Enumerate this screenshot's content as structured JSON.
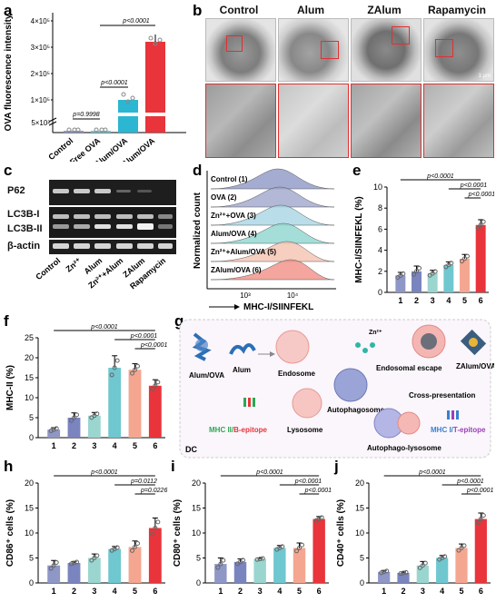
{
  "panel_labels": {
    "a": "a",
    "b": "b",
    "c": "c",
    "d": "d",
    "e": "e",
    "f": "f",
    "g": "g",
    "h": "h",
    "i": "i",
    "j": "j"
  },
  "panel_a": {
    "ylabel": "OVA fluorescence intensity",
    "yticks": [
      "5×10²",
      "1×10⁵",
      "2×10⁵",
      "3×10⁵",
      "4×10⁵"
    ],
    "xticks": [
      "Control",
      "Free OVA",
      "Alum/OVA",
      "ZAlum/OVA"
    ],
    "pvalues": [
      "p=0.9998",
      "p<0.0001",
      "p<0.0001"
    ]
  },
  "panel_b": {
    "titles": [
      "Control",
      "Alum",
      "ZAlum",
      "Rapamycin"
    ],
    "scale": "1 μm"
  },
  "panel_c": {
    "rows": [
      "P62",
      "LC3B-I",
      "LC3B-II",
      "β-actin"
    ],
    "lanes": [
      "Control",
      "Zn²⁺",
      "Alum",
      "Zn²⁺+Alum",
      "ZAlum",
      "Rapamycin"
    ]
  },
  "panel_d": {
    "ylabel": "Normalized count",
    "xlabel": "MHC-I/SIINFEKL",
    "ticks": [
      "10³",
      "10⁴"
    ],
    "rows": [
      "Control (1)",
      "OVA (2)",
      "Zn²⁺+OVA (3)",
      "Alum/OVA (4)",
      "Zn²⁺+Alum/OVA (5)",
      "ZAlum/OVA (6)"
    ],
    "colors": [
      "#8e97c6",
      "#9fa6cc",
      "#a9d6e3",
      "#8fd6cf",
      "#f4c3b2",
      "#f08f86"
    ]
  },
  "panel_g": {
    "labels": {
      "alum_ova": "Alum/OVA",
      "alum": "Alum",
      "endosome": "Endosome",
      "zn": "Zn²⁺",
      "endosomal_escape": "Endosomal escape",
      "zalum_ova": "ZAlum/OVA",
      "autophagosome": "Autophagosome",
      "lysosome": "Lysosome",
      "cross_presentation": "Cross-presentation",
      "autophago_lysosome": "Autophago-lysosome",
      "mhc2_prefix": "MHC II/",
      "mhc2_suffix": "B-epitope",
      "mhc1_prefix": "MHC I/",
      "mhc1_suffix": "T-epitope",
      "dc": "DC"
    }
  },
  "chart_data": [
    {
      "id": "e",
      "type": "bar",
      "categories": [
        "1",
        "2",
        "3",
        "4",
        "5",
        "6"
      ],
      "values": [
        1.6,
        2.0,
        1.8,
        2.6,
        3.2,
        6.4
      ],
      "errors": [
        0.3,
        0.5,
        0.3,
        0.3,
        0.4,
        0.5
      ],
      "ylabel": "MHC-I/SIINFEKL (%)",
      "ylim": [
        0,
        10
      ],
      "yticks": [
        0,
        2,
        4,
        6,
        8,
        10
      ],
      "pvalues": [
        "p<0.0001",
        "p<0.0001",
        "p<0.0001"
      ],
      "colors": [
        "#8e97c6",
        "#7a84bf",
        "#9ad6cf",
        "#6fc7cf",
        "#f4a690",
        "#e8343a"
      ]
    },
    {
      "id": "f",
      "type": "bar",
      "categories": [
        "1",
        "2",
        "3",
        "4",
        "5",
        "6"
      ],
      "values": [
        2.0,
        5.0,
        5.5,
        17.5,
        17.0,
        13.0
      ],
      "errors": [
        0.5,
        1.2,
        0.8,
        3.0,
        1.5,
        1.5
      ],
      "ylabel": "MHC-II (%)",
      "ylim": [
        0,
        25
      ],
      "yticks": [
        0,
        5,
        10,
        15,
        20,
        25
      ],
      "pvalues": [
        "p<0.0001",
        "p<0.0001",
        "p<0.0001"
      ],
      "colors": [
        "#8e97c6",
        "#7a84bf",
        "#9ad6cf",
        "#6fc7cf",
        "#f4a690",
        "#e8343a"
      ]
    },
    {
      "id": "h",
      "type": "bar",
      "categories": [
        "1",
        "2",
        "3",
        "4",
        "5",
        "6"
      ],
      "values": [
        3.5,
        4.0,
        5.0,
        6.8,
        7.2,
        11.0
      ],
      "errors": [
        1.0,
        0.3,
        0.8,
        0.5,
        1.2,
        2.0
      ],
      "ylabel": "CD86⁺ cells (%)",
      "ylim": [
        0,
        20
      ],
      "yticks": [
        0,
        5,
        10,
        15,
        20
      ],
      "pvalues": [
        "p<0.0001",
        "p=0.0112",
        "p=0.0226"
      ],
      "colors": [
        "#8e97c6",
        "#7a84bf",
        "#9ad6cf",
        "#6fc7cf",
        "#f4a690",
        "#e8343a"
      ]
    },
    {
      "id": "i",
      "type": "bar",
      "categories": [
        "1",
        "2",
        "3",
        "4",
        "5",
        "6"
      ],
      "values": [
        3.8,
        4.2,
        4.8,
        7.0,
        7.0,
        12.8
      ],
      "errors": [
        1.2,
        0.6,
        0.2,
        0.5,
        1.0,
        0.5
      ],
      "ylabel": "CD80⁺ cells (%)",
      "ylim": [
        0,
        20
      ],
      "yticks": [
        0,
        5,
        10,
        15,
        20
      ],
      "pvalues": [
        "p<0.0001",
        "p<0.0001",
        "p<0.0001"
      ],
      "colors": [
        "#8e97c6",
        "#7a84bf",
        "#9ad6cf",
        "#6fc7cf",
        "#f4a690",
        "#e8343a"
      ]
    },
    {
      "id": "j",
      "type": "bar",
      "categories": [
        "1",
        "2",
        "3",
        "4",
        "5",
        "6"
      ],
      "values": [
        2.2,
        2.0,
        3.5,
        5.0,
        7.0,
        12.8
      ],
      "errors": [
        0.3,
        0.2,
        0.8,
        0.5,
        0.8,
        1.2
      ],
      "ylabel": "CD40⁺ cells (%)",
      "ylim": [
        0,
        20
      ],
      "yticks": [
        0,
        5,
        10,
        15,
        20
      ],
      "pvalues": [
        "p<0.0001",
        "p<0.0001",
        "p<0.0001"
      ],
      "colors": [
        "#8e97c6",
        "#7a84bf",
        "#9ad6cf",
        "#6fc7cf",
        "#f4a690",
        "#e8343a"
      ]
    }
  ]
}
